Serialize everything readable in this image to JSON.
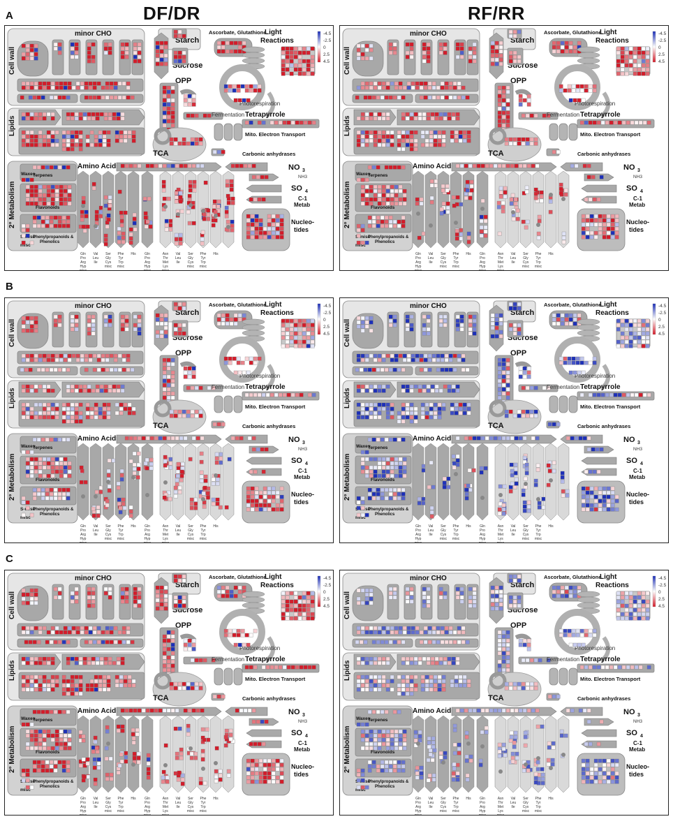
{
  "figure": {
    "columns": [
      "DF/DR",
      "RF/RR"
    ],
    "rows": [
      "A",
      "B",
      "C"
    ]
  },
  "map_labels": {
    "minor_cho": "minor CHO",
    "cell_wall": "Cell wall",
    "lipids": "Lipids",
    "secondary_metabolism": "2° Metabolism",
    "starch": "Starch",
    "sucrose": "Sucrose",
    "opp": "OPP",
    "tca": "TCA",
    "fermentation": "Fermentation",
    "photorespiration": "Photorespiration",
    "tetrapyrrole": "Tetrapyrrole",
    "mito_et": "Mito. Electron Transport",
    "carbonic": "Carbonic anhydrases",
    "ascorbate": "Ascorbate, Glutathione",
    "light_reactions": "Light Reactions",
    "amino_acids": "Amino Acids",
    "no3": "NO3",
    "nh3": "NH3",
    "so4": "SO4",
    "c1": "C-1 Metab",
    "nucleotides": "Nucleo-tides",
    "waxes": "Waxes",
    "terpenes": "Terpenes",
    "flavonoids": "Flavonoids",
    "n_misc": "N-misc",
    "s_misc": "S-misc",
    "misc": "misc",
    "phenyl": "Phenylpropanoids & Phenolics",
    "aa_groups": [
      "Gln Pro Arg Hyp misc",
      "Val Leu Ile",
      "Ser Gly Cys misc",
      "Phe Tyr Trp misc",
      "His",
      "Gln Pro Arg Hyp misc",
      "Asn Thr Met Lys misc",
      "Val Leu Ile",
      "Ser Gly Cys misc",
      "Phe Tyr Trp misc",
      "His"
    ]
  },
  "legend": {
    "ticks": [
      "-4.5",
      "-2.5",
      "0",
      "2.5",
      "4.5"
    ],
    "colors": {
      "negative": "#d31c2a",
      "zero": "#ffffff",
      "positive": "#1d2fb8"
    }
  },
  "panels": [
    {
      "row": "A",
      "col": "DF/DR",
      "bias": -0.75
    },
    {
      "row": "A",
      "col": "RF/RR",
      "bias": -0.55
    },
    {
      "row": "B",
      "col": "DF/DR",
      "bias": -0.45
    },
    {
      "row": "B",
      "col": "RF/RR",
      "bias": 0.45
    },
    {
      "row": "C",
      "col": "DF/DR",
      "bias": -0.6
    },
    {
      "row": "C",
      "col": "RF/RR",
      "bias": 0.2
    }
  ]
}
